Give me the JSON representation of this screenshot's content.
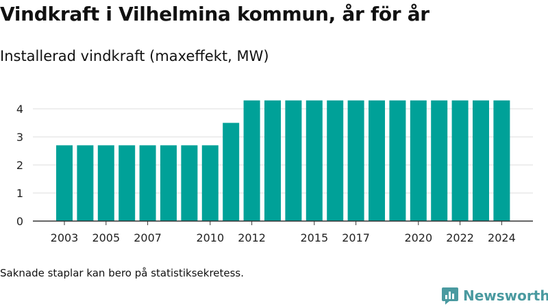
{
  "title": "Vindkraft i Vilhelmina kommun, år för år",
  "subtitle": "Installerad vindkraft (maxeffekt, MW)",
  "footnote": "Saknade staplar kan bero på statistiksekretess.",
  "brand": {
    "name": "Newsworthy",
    "logo_icon": "newsworthy-chart-bubble-icon"
  },
  "colors": {
    "bar": "#00a198",
    "grid": "#dddddd",
    "axis": "#333333",
    "brand": "#4a9aa0"
  },
  "chart_data": {
    "type": "bar",
    "categories": [
      "2003",
      "2004",
      "2005",
      "2006",
      "2007",
      "2008",
      "2009",
      "2010",
      "2011",
      "2012",
      "2013",
      "2014",
      "2015",
      "2016",
      "2017",
      "2018",
      "2019",
      "2020",
      "2021",
      "2022",
      "2023",
      "2024"
    ],
    "values": [
      2.7,
      2.7,
      2.7,
      2.7,
      2.7,
      2.7,
      2.7,
      2.7,
      3.5,
      4.3,
      4.3,
      4.3,
      4.3,
      4.3,
      4.3,
      4.3,
      4.3,
      4.3,
      4.3,
      4.3,
      4.3,
      4.3
    ],
    "xtick_labels": [
      "2003",
      "2005",
      "2007",
      "2010",
      "2012",
      "2015",
      "2017",
      "2020",
      "2022",
      "2024"
    ],
    "yticks": [
      0,
      1,
      2,
      3,
      4
    ],
    "ylim": [
      0,
      4.3
    ],
    "grid": true,
    "legend": "none"
  }
}
